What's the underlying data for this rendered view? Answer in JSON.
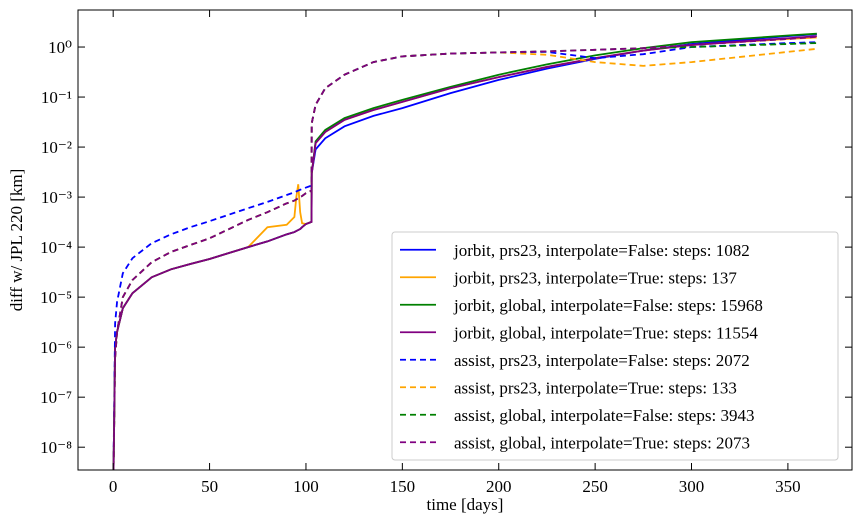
{
  "chart_data": {
    "type": "line",
    "xlabel": "time [days]",
    "ylabel": "diff w/ JPL 220 [km]",
    "log_y": true,
    "legend": "lower right",
    "x": [
      0,
      1,
      2,
      5,
      10,
      20,
      30,
      40,
      50,
      70,
      80,
      90,
      94,
      95,
      96,
      97,
      98,
      100,
      102.9,
      103,
      105,
      110,
      120,
      135,
      150,
      175,
      200,
      225,
      250,
      275,
      300,
      350,
      365
    ],
    "xlim": [
      -18.25,
      383.25
    ],
    "xticks": [
      0,
      50,
      100,
      150,
      200,
      250,
      300,
      350
    ],
    "ylim": [
      3.5e-09,
      5.5
    ],
    "yticks": [
      {
        "value": 1e-08,
        "label": "10⁻⁸"
      },
      {
        "value": 1e-07,
        "label": "10⁻⁷"
      },
      {
        "value": 1e-06,
        "label": "10⁻⁶"
      },
      {
        "value": 1e-05,
        "label": "10⁻⁵"
      },
      {
        "value": 0.0001,
        "label": "10⁻⁴"
      },
      {
        "value": 0.001,
        "label": "10⁻³"
      },
      {
        "value": 0.01,
        "label": "10⁻²"
      },
      {
        "value": 0.1,
        "label": "10⁻¹"
      },
      {
        "value": 1,
        "label": "10⁰"
      }
    ],
    "series": [
      {
        "name": "jorbit, prs23, interpolate=False: steps: 1082",
        "color": "#0000ff",
        "dash": false,
        "values": [
          1e-09,
          1e-06,
          2e-06,
          6e-06,
          1.2e-05,
          2.5e-05,
          3.6e-05,
          4.6e-05,
          5.8e-05,
          0.0001,
          0.00013,
          0.00018,
          0.0002,
          0.00021,
          0.00022,
          0.00023,
          0.00025,
          0.00029,
          0.00032,
          0.003,
          0.009,
          0.015,
          0.026,
          0.042,
          0.06,
          0.12,
          0.22,
          0.37,
          0.58,
          0.85,
          1.15,
          1.65,
          1.8
        ]
      },
      {
        "name": "jorbit, prs23, interpolate=True: steps: 137",
        "color": "#ffa500",
        "dash": false,
        "values": [
          1e-09,
          1e-06,
          2e-06,
          6e-06,
          1.2e-05,
          2.5e-05,
          3.6e-05,
          4.6e-05,
          5.8e-05,
          0.0001,
          0.00025,
          0.00028,
          0.0004,
          0.001,
          0.0018,
          0.0005,
          0.0003,
          0.00029,
          0.00032,
          0.003,
          0.012,
          0.02,
          0.035,
          0.055,
          0.08,
          0.15,
          0.25,
          0.4,
          0.6,
          0.85,
          1.1,
          1.45,
          1.55
        ]
      },
      {
        "name": "jorbit, global, interpolate=False: steps: 15968",
        "color": "#008000",
        "dash": false,
        "values": [
          1e-09,
          1e-06,
          2e-06,
          6e-06,
          1.2e-05,
          2.5e-05,
          3.6e-05,
          4.6e-05,
          5.8e-05,
          0.0001,
          0.00013,
          0.00018,
          0.0002,
          0.00021,
          0.00022,
          0.00023,
          0.00025,
          0.00029,
          0.00032,
          0.003,
          0.013,
          0.022,
          0.038,
          0.06,
          0.088,
          0.16,
          0.28,
          0.45,
          0.68,
          0.95,
          1.25,
          1.7,
          1.85
        ]
      },
      {
        "name": "jorbit, global, interpolate=True: steps: 11554",
        "color": "#800080",
        "dash": false,
        "values": [
          1e-09,
          1e-06,
          2e-06,
          6e-06,
          1.2e-05,
          2.5e-05,
          3.6e-05,
          4.6e-05,
          5.8e-05,
          0.0001,
          0.00013,
          0.00018,
          0.0002,
          0.00021,
          0.00022,
          0.00023,
          0.00025,
          0.00029,
          0.00032,
          0.003,
          0.012,
          0.02,
          0.035,
          0.055,
          0.08,
          0.15,
          0.25,
          0.4,
          0.6,
          0.85,
          1.1,
          1.5,
          1.65
        ]
      },
      {
        "name": "assist, prs23, interpolate=False: steps: 2072",
        "color": "#0000ff",
        "dash": true,
        "values": [
          1e-09,
          3e-06,
          8e-06,
          3e-05,
          6e-05,
          0.00012,
          0.00018,
          0.00025,
          0.00033,
          0.0006,
          0.0008,
          0.0011,
          0.00125,
          0.0013,
          0.00135,
          0.0014,
          0.00145,
          0.00155,
          0.0017,
          0.03,
          0.07,
          0.15,
          0.28,
          0.5,
          0.65,
          0.74,
          0.78,
          0.8,
          0.6,
          0.72,
          1.0,
          1.2,
          1.25
        ]
      },
      {
        "name": "assist, prs23, interpolate=True: steps: 133",
        "color": "#ffa500",
        "dash": true,
        "values": [
          1e-09,
          6e-07,
          2e-06,
          1e-05,
          2.2e-05,
          5e-05,
          8e-05,
          0.00011,
          0.00015,
          0.00035,
          0.0005,
          0.00075,
          0.00085,
          0.0009,
          0.00095,
          0.001,
          0.00105,
          0.0012,
          0.00135,
          0.03,
          0.07,
          0.15,
          0.28,
          0.5,
          0.65,
          0.74,
          0.78,
          0.7,
          0.5,
          0.42,
          0.5,
          0.8,
          0.92
        ]
      },
      {
        "name": "assist, global, interpolate=False: steps: 3943",
        "color": "#008000",
        "dash": true,
        "values": [
          1e-09,
          6e-07,
          2e-06,
          1e-05,
          2.2e-05,
          5e-05,
          8e-05,
          0.00011,
          0.00015,
          0.00035,
          0.0005,
          0.00075,
          0.00085,
          0.0009,
          0.00095,
          0.001,
          0.00105,
          0.0012,
          0.00135,
          0.03,
          0.07,
          0.15,
          0.28,
          0.5,
          0.65,
          0.74,
          0.78,
          0.82,
          0.88,
          0.95,
          1.0,
          1.15,
          1.2
        ]
      },
      {
        "name": "assist, global, interpolate=True: steps: 2073",
        "color": "#800080",
        "dash": true,
        "values": [
          1e-09,
          6e-07,
          2e-06,
          1e-05,
          2.2e-05,
          5e-05,
          8e-05,
          0.00011,
          0.00015,
          0.00035,
          0.0005,
          0.00075,
          0.00085,
          0.0009,
          0.00095,
          0.001,
          0.00105,
          0.0012,
          0.00135,
          0.03,
          0.07,
          0.15,
          0.28,
          0.5,
          0.65,
          0.74,
          0.78,
          0.82,
          0.88,
          0.95,
          1.1,
          1.45,
          1.6
        ]
      }
    ]
  }
}
